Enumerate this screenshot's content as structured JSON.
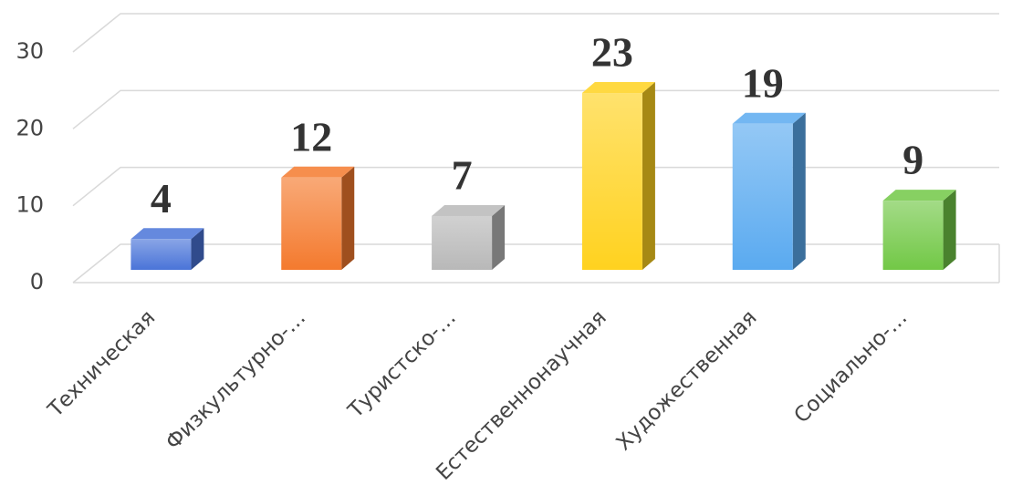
{
  "chart_data": {
    "type": "bar3d",
    "categories": [
      "Техническая",
      "Физкультурно-…",
      "Туристско-…",
      "Естественнонаучная",
      "Художественная",
      "Социально-…"
    ],
    "values": [
      4,
      12,
      7,
      23,
      19,
      9
    ],
    "colors": [
      "#4a74d8",
      "#f47a2e",
      "#b8b8b8",
      "#ffd21f",
      "#5aaaf0",
      "#72c846"
    ],
    "ylim": [
      0,
      30
    ],
    "yticks": [
      0,
      10,
      20,
      30
    ],
    "grid": true
  }
}
